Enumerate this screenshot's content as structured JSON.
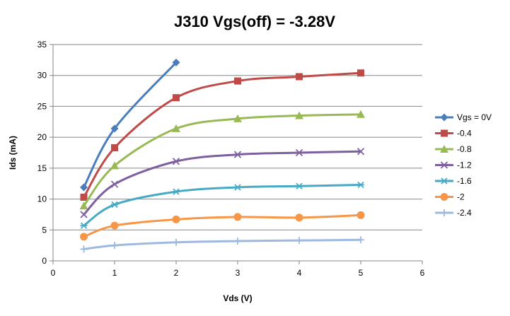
{
  "chart_data": {
    "type": "line",
    "title": "J310 Vgs(off) = -3.28V",
    "xlabel": "Vds (V)",
    "ylabel": "Ids (mA)",
    "xlim": [
      0,
      6
    ],
    "ylim": [
      0,
      35
    ],
    "xticks": [
      0,
      1,
      2,
      3,
      4,
      5,
      6
    ],
    "yticks": [
      0,
      5,
      10,
      15,
      20,
      25,
      30,
      35
    ],
    "grid": "horizontal",
    "legend_position": "right",
    "smooth": true,
    "series": [
      {
        "name": "Vgs = 0V",
        "color": "#4a7ebb",
        "marker": "diamond",
        "x": [
          0.5,
          1,
          2
        ],
        "y": [
          11.9,
          21.4,
          32.1
        ]
      },
      {
        "name": "-0.4",
        "color": "#be4b48",
        "marker": "square",
        "x": [
          0.5,
          1,
          2,
          3,
          4,
          5
        ],
        "y": [
          10.3,
          18.3,
          26.4,
          29.1,
          29.8,
          30.4
        ]
      },
      {
        "name": "-0.8",
        "color": "#98b954",
        "marker": "triangle",
        "x": [
          0.5,
          1,
          2,
          3,
          4,
          5
        ],
        "y": [
          8.9,
          15.4,
          21.4,
          23.0,
          23.5,
          23.7
        ]
      },
      {
        "name": "-1.2",
        "color": "#7d60a0",
        "marker": "x",
        "x": [
          0.5,
          1,
          2,
          3,
          4,
          5
        ],
        "y": [
          7.5,
          12.4,
          16.1,
          17.2,
          17.5,
          17.7
        ]
      },
      {
        "name": "-1.6",
        "color": "#46aac5",
        "marker": "asterisk",
        "x": [
          0.5,
          1,
          2,
          3,
          4,
          5
        ],
        "y": [
          5.7,
          9.1,
          11.2,
          11.9,
          12.1,
          12.3
        ]
      },
      {
        "name": "-2",
        "color": "#f79646",
        "marker": "circle",
        "x": [
          0.5,
          1,
          2,
          3,
          4,
          5
        ],
        "y": [
          3.9,
          5.7,
          6.7,
          7.1,
          7.0,
          7.4
        ]
      },
      {
        "name": "-2.4",
        "color": "#9db9e0",
        "marker": "plus",
        "x": [
          0.5,
          1,
          2,
          3,
          4,
          5
        ],
        "y": [
          1.9,
          2.5,
          3.0,
          3.2,
          3.3,
          3.4
        ]
      }
    ]
  }
}
